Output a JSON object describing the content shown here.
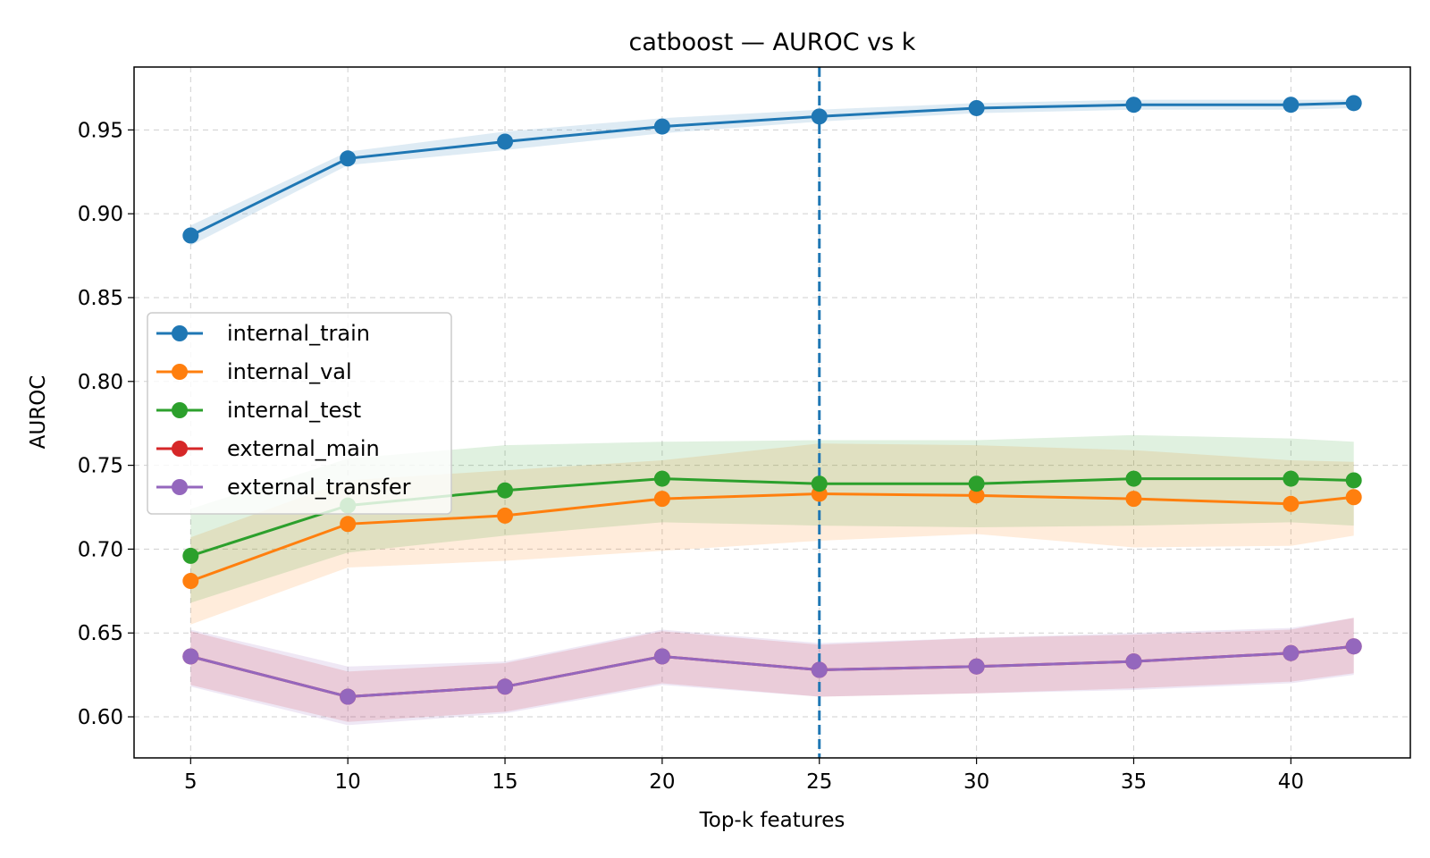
{
  "chart_data": {
    "type": "line",
    "title": "catboost — AUROC vs k",
    "xlabel": "Top-k features",
    "ylabel": "AUROC",
    "xlim": [
      3.2,
      43.8
    ],
    "ylim": [
      0.5755,
      0.9875
    ],
    "x_ticks": [
      5,
      10,
      15,
      20,
      25,
      30,
      35,
      40
    ],
    "y_ticks": [
      0.6,
      0.65,
      0.7,
      0.75,
      0.8,
      0.85,
      0.9,
      0.95
    ],
    "x_tick_labels": [
      "5",
      "10",
      "15",
      "20",
      "25",
      "30",
      "35",
      "40"
    ],
    "y_tick_labels": [
      "0.60",
      "0.65",
      "0.70",
      "0.75",
      "0.80",
      "0.85",
      "0.90",
      "0.95"
    ],
    "grid": true,
    "legend_position": "center-left",
    "reference_line": {
      "x": 25,
      "style": "dashed",
      "color": "#1f77b4"
    },
    "x": [
      5,
      10,
      15,
      20,
      25,
      30,
      35,
      40,
      42
    ],
    "series": [
      {
        "name": "internal_train",
        "color": "#1f77b4",
        "values": [
          0.887,
          0.933,
          0.943,
          0.952,
          0.958,
          0.963,
          0.965,
          0.965,
          0.966
        ],
        "lower": [
          0.881,
          0.929,
          0.938,
          0.948,
          0.955,
          0.96,
          0.962,
          0.962,
          0.963
        ],
        "upper": [
          0.893,
          0.937,
          0.949,
          0.957,
          0.962,
          0.966,
          0.968,
          0.968,
          0.968
        ]
      },
      {
        "name": "internal_val",
        "color": "#ff7f0e",
        "values": [
          0.681,
          0.715,
          0.72,
          0.73,
          0.733,
          0.732,
          0.73,
          0.727,
          0.731
        ],
        "lower": [
          0.655,
          0.689,
          0.693,
          0.699,
          0.705,
          0.709,
          0.701,
          0.702,
          0.708
        ],
        "upper": [
          0.707,
          0.741,
          0.747,
          0.753,
          0.763,
          0.762,
          0.759,
          0.753,
          0.752
        ]
      },
      {
        "name": "internal_test",
        "color": "#2ca02c",
        "values": [
          0.696,
          0.726,
          0.735,
          0.742,
          0.739,
          0.739,
          0.742,
          0.742,
          0.741
        ],
        "lower": [
          0.668,
          0.698,
          0.708,
          0.716,
          0.714,
          0.713,
          0.714,
          0.716,
          0.714
        ],
        "upper": [
          0.724,
          0.754,
          0.762,
          0.764,
          0.765,
          0.765,
          0.768,
          0.766,
          0.764
        ]
      },
      {
        "name": "external_main",
        "color": "#d62728",
        "values": [
          0.636,
          0.612,
          0.618,
          0.636,
          0.628,
          0.63,
          0.633,
          0.638,
          0.642
        ],
        "lower": [
          0.619,
          0.597,
          0.603,
          0.62,
          0.612,
          0.614,
          0.617,
          0.621,
          0.626
        ],
        "upper": [
          0.651,
          0.627,
          0.632,
          0.651,
          0.643,
          0.647,
          0.649,
          0.652,
          0.659
        ]
      },
      {
        "name": "external_transfer",
        "color": "#9467bd",
        "values": [
          0.636,
          0.612,
          0.618,
          0.636,
          0.628,
          0.63,
          0.633,
          0.638,
          0.642
        ],
        "lower": [
          0.618,
          0.595,
          0.602,
          0.619,
          0.612,
          0.614,
          0.616,
          0.62,
          0.625
        ],
        "upper": [
          0.652,
          0.63,
          0.633,
          0.652,
          0.644,
          0.647,
          0.65,
          0.653,
          0.659
        ]
      }
    ]
  }
}
